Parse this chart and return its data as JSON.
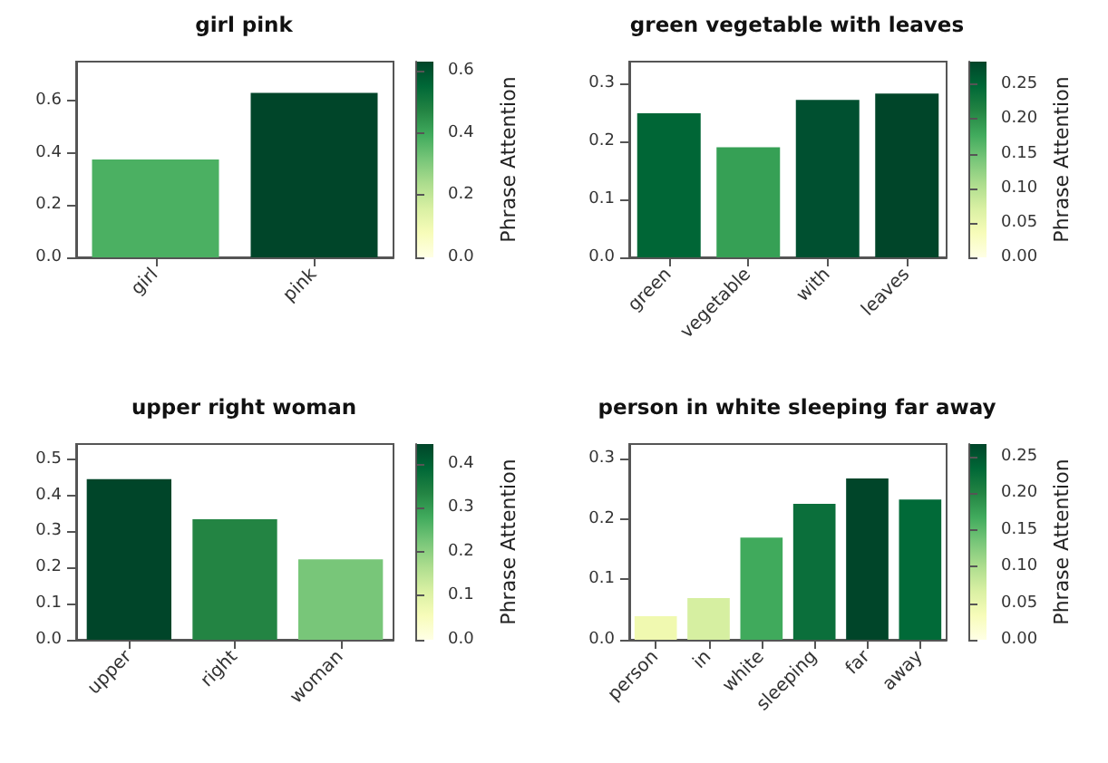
{
  "chart_data": [
    {
      "type": "bar",
      "title": "girl pink",
      "categories": [
        "girl",
        "pink"
      ],
      "values": [
        0.375,
        0.63
      ],
      "colors": [
        "#4bb062",
        "#004529"
      ],
      "ylim": [
        0,
        0.75
      ],
      "yticks": [
        {
          "value": 0,
          "label": "0.0"
        },
        {
          "value": 0.2,
          "label": "0.2"
        },
        {
          "value": 0.4,
          "label": "0.4"
        },
        {
          "value": 0.6,
          "label": "0.6"
        }
      ],
      "clabel": "Phrase Attention",
      "clim": [
        0,
        0.63
      ],
      "cticks": [
        {
          "value": 0,
          "label": "0.0"
        },
        {
          "value": 0.2,
          "label": "0.2"
        },
        {
          "value": 0.4,
          "label": "0.4"
        },
        {
          "value": 0.6,
          "label": "0.6"
        }
      ]
    },
    {
      "type": "bar",
      "title": "green vegetable with leaves",
      "categories": [
        "green",
        "vegetable",
        "with",
        "leaves"
      ],
      "values": [
        0.249,
        0.19,
        0.272,
        0.283
      ],
      "colors": [
        "#006636",
        "#36a055",
        "#005030",
        "#004529"
      ],
      "ylim": [
        0,
        0.338
      ],
      "yticks": [
        {
          "value": 0,
          "label": "0.0"
        },
        {
          "value": 0.1,
          "label": "0.1"
        },
        {
          "value": 0.2,
          "label": "0.2"
        },
        {
          "value": 0.3,
          "label": "0.3"
        }
      ],
      "clabel": "Phrase Attention",
      "clim": [
        0,
        0.283
      ],
      "cticks": [
        {
          "value": 0,
          "label": "0.00"
        },
        {
          "value": 0.05,
          "label": "0.05"
        },
        {
          "value": 0.1,
          "label": "0.10"
        },
        {
          "value": 0.15,
          "label": "0.15"
        },
        {
          "value": 0.2,
          "label": "0.20"
        },
        {
          "value": 0.25,
          "label": "0.25"
        }
      ]
    },
    {
      "type": "bar",
      "title": "upper right woman",
      "categories": [
        "upper",
        "right",
        "woman"
      ],
      "values": [
        0.445,
        0.334,
        0.223
      ],
      "colors": [
        "#004529",
        "#238443",
        "#78c679"
      ],
      "ylim": [
        0,
        0.542
      ],
      "yticks": [
        {
          "value": 0,
          "label": "0.0"
        },
        {
          "value": 0.1,
          "label": "0.1"
        },
        {
          "value": 0.2,
          "label": "0.2"
        },
        {
          "value": 0.3,
          "label": "0.3"
        },
        {
          "value": 0.4,
          "label": "0.4"
        },
        {
          "value": 0.5,
          "label": "0.5"
        }
      ],
      "clabel": "Phrase Attention",
      "clim": [
        0,
        0.445
      ],
      "cticks": [
        {
          "value": 0,
          "label": "0.0"
        },
        {
          "value": 0.1,
          "label": "0.1"
        },
        {
          "value": 0.2,
          "label": "0.2"
        },
        {
          "value": 0.3,
          "label": "0.3"
        },
        {
          "value": 0.4,
          "label": "0.4"
        }
      ]
    },
    {
      "type": "bar",
      "title": "person in white sleeping far away",
      "categories": [
        "person",
        "in",
        "white",
        "sleeping",
        "far",
        "away"
      ],
      "values": [
        0.039,
        0.069,
        0.169,
        0.225,
        0.267,
        0.232
      ],
      "colors": [
        "#f0f9b0",
        "#d6efa1",
        "#40aa5c",
        "#0b6f3b",
        "#004529",
        "#016a38"
      ],
      "ylim": [
        0,
        0.324
      ],
      "yticks": [
        {
          "value": 0,
          "label": "0.0"
        },
        {
          "value": 0.1,
          "label": "0.1"
        },
        {
          "value": 0.2,
          "label": "0.2"
        },
        {
          "value": 0.3,
          "label": "0.3"
        }
      ],
      "clabel": "Phrase Attention",
      "clim": [
        0,
        0.267
      ],
      "cticks": [
        {
          "value": 0,
          "label": "0.00"
        },
        {
          "value": 0.05,
          "label": "0.05"
        },
        {
          "value": 0.1,
          "label": "0.10"
        },
        {
          "value": 0.15,
          "label": "0.15"
        },
        {
          "value": 0.2,
          "label": "0.20"
        },
        {
          "value": 0.25,
          "label": "0.25"
        }
      ]
    }
  ]
}
